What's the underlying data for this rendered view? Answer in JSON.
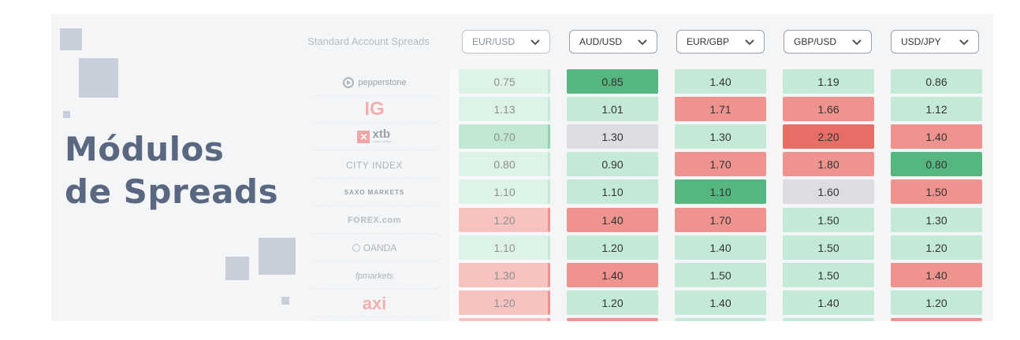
{
  "title": {
    "line1": "Módulos",
    "line2": "de Spreads"
  },
  "table": {
    "header_label": "Standard Account Spreads",
    "pairs": [
      "EUR/USD",
      "AUD/USD",
      "EUR/GBP",
      "GBP/USD",
      "USD/JPY"
    ],
    "brokers": [
      {
        "name": "pepperstone",
        "values": [
          "0.75",
          "0.85",
          "1.40",
          "1.19",
          "0.86"
        ]
      },
      {
        "name": "IG",
        "values": [
          "1.13",
          "1.01",
          "1.71",
          "1.66",
          "1.12"
        ]
      },
      {
        "name": "xtb",
        "sub": "online trading",
        "values": [
          "0.70",
          "1.30",
          "1.30",
          "2.20",
          "1.40"
        ]
      },
      {
        "name": "CITY INDEX",
        "values": [
          "0.80",
          "0.90",
          "1.70",
          "1.80",
          "0.80"
        ]
      },
      {
        "name": "SAXO MARKETS",
        "values": [
          "1.10",
          "1.10",
          "1.10",
          "1.60",
          "1.50"
        ]
      },
      {
        "name": "FOREX.com",
        "values": [
          "1.20",
          "1.40",
          "1.70",
          "1.50",
          "1.30"
        ]
      },
      {
        "name": "OANDA",
        "values": [
          "1.10",
          "1.20",
          "1.40",
          "1.50",
          "1.20"
        ]
      },
      {
        "name": "fpmarkets",
        "values": [
          "1.30",
          "1.40",
          "1.50",
          "1.50",
          "1.40"
        ]
      },
      {
        "name": "axi",
        "values": [
          "1.20",
          "1.20",
          "1.40",
          "1.40",
          "1.20"
        ]
      }
    ],
    "cell_levels": [
      [
        "lg",
        "dg",
        "lg",
        "lg",
        "lg"
      ],
      [
        "lg",
        "lg",
        "r",
        "r",
        "lg"
      ],
      [
        "mg",
        "gy",
        "lg",
        "dr",
        "r"
      ],
      [
        "lg",
        "lg",
        "r",
        "r",
        "dg"
      ],
      [
        "lg",
        "lg",
        "dg",
        "gy",
        "r"
      ],
      [
        "r",
        "r",
        "r",
        "lg",
        "lg"
      ],
      [
        "lg",
        "lg",
        "lg",
        "lg",
        "lg"
      ],
      [
        "r",
        "r",
        "lg",
        "lg",
        "r"
      ],
      [
        "r",
        "lg",
        "lg",
        "lg",
        "lg"
      ]
    ],
    "level_colors": {
      "lg": "#c3ead6",
      "mg": "#8dd3ab",
      "dg": "#55b77f",
      "r": "#ee938d",
      "dr": "#e66e66",
      "gy": "#dcdde0"
    },
    "next_row_levels": [
      "r",
      "r",
      "lg",
      "lg",
      "r"
    ]
  },
  "colors": {
    "title": "#5a6780",
    "deco": "#c8ceda"
  }
}
